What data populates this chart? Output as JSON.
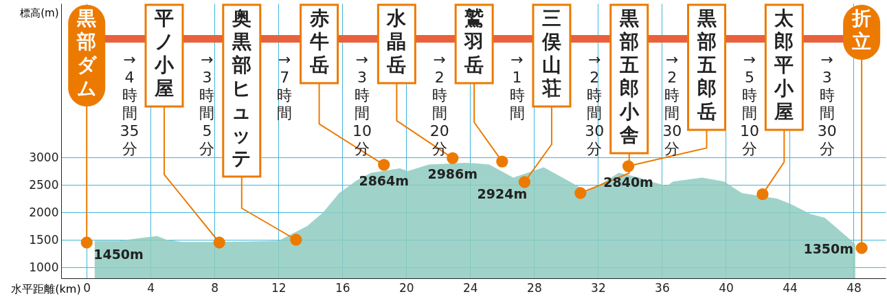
{
  "chart_data": {
    "type": "area",
    "xlabel": "水平距離(km)",
    "ylabel": "標高(m)",
    "xlim": [
      -1.6,
      50
    ],
    "ylim": [
      800,
      5800
    ],
    "xticks": [
      0,
      4,
      8,
      12,
      16,
      20,
      24,
      28,
      32,
      36,
      40,
      44,
      48
    ],
    "yticks": [
      1000,
      1500,
      2000,
      2500,
      3000
    ],
    "grid": true,
    "series": [
      {
        "color": "#8ecbc0",
        "x": [
          0.5,
          2,
          4.4,
          5,
          6,
          7.6,
          10,
          12,
          13.8,
          14.8,
          15.8,
          16.9,
          17.8,
          19.6,
          20.1,
          21.4,
          23.7,
          24.4,
          25.2,
          26.7,
          28.6,
          30.4,
          31.3,
          32,
          33.3,
          34.6,
          35.3,
          36.3,
          36.7,
          38.5,
          39.9,
          41,
          43.2,
          44,
          45.3,
          46.2,
          47.8,
          48.1
        ],
        "values": [
          1480,
          1480,
          1570,
          1500,
          1460,
          1460,
          1470,
          1480,
          1750,
          2000,
          2350,
          2580,
          2720,
          2800,
          2750,
          2870,
          2900,
          2890,
          2870,
          2630,
          2820,
          2530,
          2380,
          2480,
          2720,
          2630,
          2560,
          2480,
          2560,
          2630,
          2560,
          2350,
          2250,
          2160,
          1970,
          1900,
          1500,
          1420
        ]
      },
      {
        "type": "scatter",
        "color": "#ec7a00",
        "marker": "circle",
        "x": [
          0,
          8.3,
          13.1,
          18.6,
          22.9,
          26.0,
          27.4,
          30.9,
          33.9,
          42.3,
          48.5
        ],
        "values": [
          1450,
          1450,
          1500,
          2864,
          2986,
          2924,
          2550,
          2350,
          2840,
          2330,
          1350
        ],
        "value_labels": [
          "1450m",
          null,
          null,
          "2864m",
          "2986m",
          "2924m",
          null,
          null,
          "2840m",
          null,
          "1350m"
        ]
      }
    ],
    "annotations": [
      {
        "text": "黒部ダム",
        "x": 0,
        "y": 1450
      },
      {
        "text": "平ノ小屋",
        "x": 8.3,
        "y": 1450
      },
      {
        "text": "奥黒部ヒュッテ",
        "x": 13.1,
        "y": 1500
      },
      {
        "text": "赤牛岳",
        "x": 18.6,
        "y": 2864
      },
      {
        "text": "水晶岳",
        "x": 22.9,
        "y": 2986
      },
      {
        "text": "鷲羽岳",
        "x": 26.0,
        "y": 2924
      },
      {
        "text": "三俣山荘",
        "x": 27.4,
        "y": 2550
      },
      {
        "text": "黒部五郎小舎",
        "x": 30.9,
        "y": 2350
      },
      {
        "text": "黒部五郎岳",
        "x": 33.9,
        "y": 2840
      },
      {
        "text": "太郎平小屋",
        "x": 42.3,
        "y": 2330
      },
      {
        "text": "折立",
        "x": 48.5,
        "y": 1350
      },
      "→4時間35分",
      "→3時間5分",
      "→7時間",
      "→3時間10分",
      "→2時間20分",
      "→1時間",
      "→2時間30分",
      "→2時間30分",
      "→5時間10分",
      "→3時間30分"
    ]
  }
}
